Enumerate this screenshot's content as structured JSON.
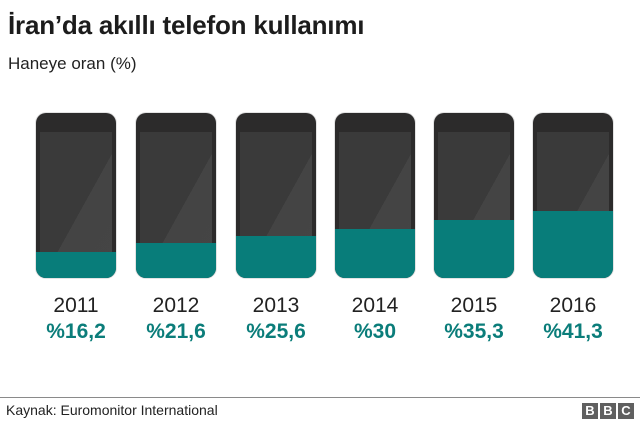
{
  "header": {
    "title": "İran’da akıllı telefon kullanımı",
    "subtitle": "Haneye oran (%)"
  },
  "chart_data": {
    "type": "bar",
    "title": "İran’da akıllı telefon kullanımı",
    "subtitle": "Haneye oran (%)",
    "xlabel": "",
    "ylabel": "Haneye oran (%)",
    "categories": [
      "2011",
      "2012",
      "2013",
      "2014",
      "2015",
      "2016"
    ],
    "values": [
      16.2,
      21.6,
      25.6,
      30,
      35.3,
      41.3
    ],
    "value_labels": [
      "%16,2",
      "%21,6",
      "%25,6",
      "%30",
      "%35,3",
      "%41,3"
    ],
    "ylim": [
      0,
      100
    ],
    "grid": false,
    "legend": null,
    "style": "pictogram-phones-fill"
  },
  "colors": {
    "fill": "#087d7a",
    "value_text": "#0b7d7a",
    "phone_body": "#2c2b2b",
    "phone_screen": "#3a3a3a"
  },
  "footer": {
    "source": "Kaynak: Euromonitor International",
    "logo_letters": [
      "B",
      "B",
      "C"
    ]
  }
}
